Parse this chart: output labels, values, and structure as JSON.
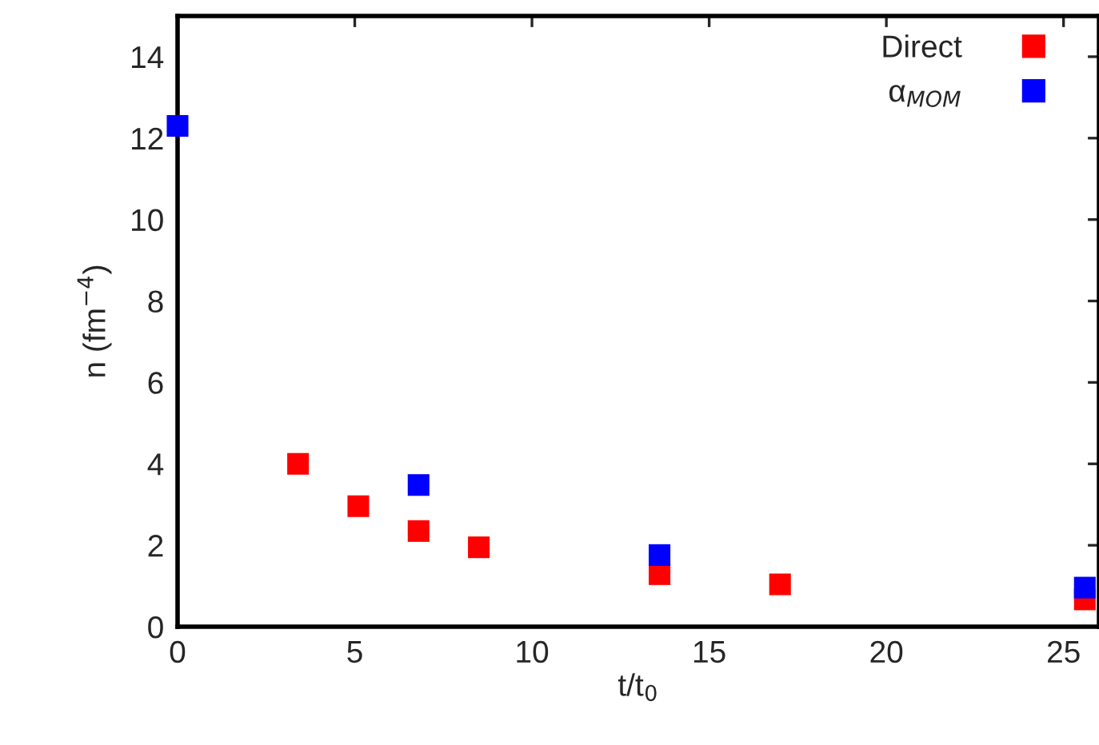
{
  "chart_data": {
    "type": "scatter",
    "xlabel": "t/t$_{0}$",
    "ylabel": "n (fm$^{−4}$)",
    "xlim": [
      0,
      26
    ],
    "xticks": [
      0,
      5,
      10,
      15,
      20,
      25
    ],
    "ylim": [
      0,
      15
    ],
    "yticks": [
      0,
      2,
      4,
      6,
      8,
      10,
      12,
      14
    ],
    "marker": "square",
    "grid": false,
    "legend": "top right",
    "series": [
      {
        "name": "Direct",
        "color": "#ff0000",
        "x": [
          3.4,
          5.1,
          6.8,
          8.5,
          13.6,
          17.0,
          25.6
        ],
        "values": [
          4.0,
          2.96,
          2.35,
          1.95,
          1.29,
          1.04,
          0.67
        ]
      },
      {
        "name": "α$_{MOM}$",
        "color": "#0000ff",
        "x": [
          0,
          6.8,
          13.6,
          25.6
        ],
        "values": [
          12.3,
          3.48,
          1.76,
          0.96
        ]
      }
    ]
  }
}
